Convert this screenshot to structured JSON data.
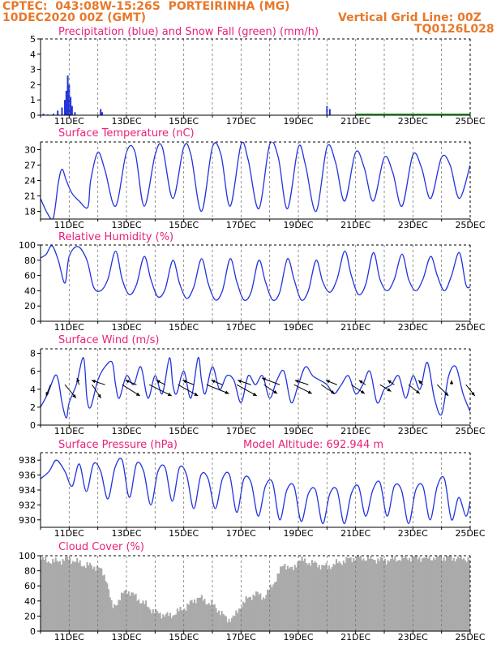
{
  "header": {
    "line1_left": "CPTEC:  043:08W-15:26S  PORTEIRINHA (MG)",
    "line2_left": "10DEC2020 00Z (GMT)",
    "line1_right": "Vertical Grid Line: 00Z",
    "line2_right": "TQ0126L028",
    "color": "#e8782a"
  },
  "colors": {
    "title": "#e8207a",
    "line": "#2233dd",
    "snow": "#22aa22",
    "cloud": "#aaaaaa",
    "arrow": "#000000"
  },
  "x_axis": {
    "ticks": [
      "11DEC",
      "13DEC",
      "15DEC",
      "17DEC",
      "19DEC",
      "21DEC",
      "23DEC",
      "25DEC"
    ],
    "tick_days": [
      1,
      3,
      5,
      7,
      9,
      11,
      13,
      15
    ],
    "range_days": [
      0,
      15
    ],
    "grid": "dashed vertical every day at 00Z"
  },
  "panels": {
    "precip": {
      "title": "Precipitation (blue) and Snow Fall (green) (mm/h)"
    },
    "temp": {
      "title": "Surface Temperature (nC)"
    },
    "rh": {
      "title": "Relative Humidity (%)"
    },
    "wind": {
      "title": "Surface Wind (m/s)"
    },
    "pres": {
      "title": "Surface Pressure (hPa)",
      "extra": "Model Altitude: 692.944 m"
    },
    "cloud": {
      "title": "Cloud Cover (%)"
    }
  },
  "chart_data": [
    {
      "type": "bar",
      "title": "Precipitation (blue) and Snow Fall (green) (mm/h)",
      "ylim": [
        0,
        5
      ],
      "yticks": [
        "0",
        "1",
        "2",
        "3",
        "4",
        "5"
      ],
      "x_unit": "days since 10DEC2020 00Z",
      "series": [
        {
          "name": "Precipitation",
          "color": "#2233dd",
          "x": [
            0.1,
            0.25,
            0.45,
            0.6,
            0.75,
            0.85,
            0.9,
            0.95,
            1.0,
            1.05,
            1.1,
            1.2,
            2.1,
            2.15,
            10.0,
            10.1,
            11.7,
            12.7,
            13.5
          ],
          "values": [
            0.1,
            0.05,
            0.1,
            0.3,
            0.5,
            1.0,
            1.6,
            2.6,
            2.0,
            1.2,
            0.6,
            0.2,
            0.4,
            0.2,
            0.6,
            0.4,
            0.05,
            0.1,
            0.05
          ]
        },
        {
          "name": "Snow Fall",
          "color": "#22aa22",
          "x": [
            11.0,
            12.0,
            13.0,
            14.0,
            15.0
          ],
          "values": [
            0.03,
            0.03,
            0.03,
            0.03,
            0.03
          ]
        }
      ]
    },
    {
      "type": "line",
      "title": "Surface Temperature (nC)",
      "ylim": [
        16.5,
        31.5
      ],
      "yticks": [
        "18",
        "21",
        "24",
        "27",
        "30"
      ],
      "x_unit": "days since 10DEC2020 00Z",
      "series": [
        {
          "name": "Temperature",
          "color": "#2233dd",
          "x": [
            0,
            0.25,
            0.45,
            0.62,
            0.75,
            0.9,
            1.1,
            1.35,
            1.65,
            1.75,
            2.0,
            2.25,
            2.62,
            3.0,
            3.3,
            3.62,
            4.0,
            4.25,
            4.62,
            5.0,
            5.25,
            5.62,
            6.0,
            6.3,
            6.62,
            7.0,
            7.25,
            7.62,
            8.0,
            8.3,
            8.62,
            9.0,
            9.25,
            9.62,
            10.0,
            10.3,
            10.62,
            11.0,
            11.3,
            11.62,
            12.0,
            12.3,
            12.62,
            13.0,
            13.3,
            13.62,
            14.0,
            14.3,
            14.62,
            15.0
          ],
          "y": [
            20.5,
            17.5,
            16.8,
            23.5,
            26.2,
            24.0,
            21.5,
            20.0,
            18.8,
            24.0,
            29.5,
            26.0,
            19.0,
            29.5,
            29.5,
            19.0,
            29.0,
            30.5,
            20.5,
            30.5,
            29.0,
            18.0,
            30.5,
            29.0,
            19.0,
            31.0,
            28.0,
            18.5,
            31.0,
            28.5,
            18.5,
            30.5,
            27.0,
            18.0,
            30.5,
            27.5,
            20.0,
            29.5,
            26.5,
            20.0,
            28.5,
            25.5,
            19.0,
            29.0,
            26.5,
            20.5,
            28.5,
            27.0,
            20.5,
            27.0
          ]
        }
      ]
    },
    {
      "type": "line",
      "title": "Relative Humidity (%)",
      "ylim": [
        0,
        100
      ],
      "yticks": [
        "0",
        "20",
        "40",
        "60",
        "80",
        "100"
      ],
      "x_unit": "days since 10DEC2020 00Z",
      "series": [
        {
          "name": "Relative Humidity",
          "color": "#2233dd",
          "x": [
            0,
            0.2,
            0.4,
            0.62,
            0.85,
            1.0,
            1.3,
            1.62,
            1.85,
            2.1,
            2.35,
            2.62,
            2.85,
            3.1,
            3.35,
            3.62,
            3.85,
            4.1,
            4.35,
            4.62,
            4.85,
            5.1,
            5.35,
            5.62,
            5.85,
            6.1,
            6.35,
            6.62,
            6.85,
            7.1,
            7.35,
            7.62,
            7.85,
            8.1,
            8.35,
            8.62,
            8.85,
            9.1,
            9.35,
            9.62,
            9.85,
            10.1,
            10.35,
            10.62,
            10.85,
            11.1,
            11.35,
            11.62,
            11.85,
            12.1,
            12.35,
            12.62,
            12.85,
            13.1,
            13.35,
            13.62,
            13.85,
            14.1,
            14.35,
            14.62,
            14.85,
            15.0
          ],
          "y": [
            83,
            88,
            99,
            80,
            50,
            85,
            98,
            80,
            45,
            40,
            55,
            92,
            55,
            35,
            48,
            85,
            55,
            32,
            42,
            80,
            50,
            30,
            45,
            82,
            50,
            28,
            40,
            82,
            52,
            28,
            38,
            80,
            52,
            28,
            38,
            82,
            55,
            28,
            40,
            80,
            52,
            38,
            55,
            92,
            60,
            35,
            48,
            90,
            55,
            40,
            55,
            88,
            55,
            40,
            55,
            85,
            60,
            40,
            60,
            90,
            48,
            45
          ]
        }
      ]
    },
    {
      "type": "line",
      "title": "Surface Wind (m/s)",
      "ylim": [
        0,
        8.5
      ],
      "yticks": [
        "0",
        "2",
        "4",
        "6",
        "8"
      ],
      "x_unit": "days since 10DEC2020 00Z",
      "series": [
        {
          "name": "Wind speed",
          "color": "#2233dd",
          "x": [
            0,
            0.25,
            0.5,
            0.62,
            0.75,
            0.9,
            1.0,
            1.25,
            1.5,
            1.62,
            1.75,
            2.0,
            2.25,
            2.5,
            2.62,
            2.75,
            3.0,
            3.25,
            3.5,
            3.75,
            4.0,
            4.25,
            4.5,
            4.62,
            4.75,
            5.0,
            5.25,
            5.5,
            5.62,
            5.75,
            6.0,
            6.25,
            6.5,
            6.75,
            7.0,
            7.25,
            7.5,
            7.75,
            8.0,
            8.25,
            8.5,
            8.75,
            9.0,
            9.25,
            9.5,
            9.75,
            10.0,
            10.25,
            10.5,
            10.75,
            11.0,
            11.25,
            11.5,
            11.75,
            12.0,
            12.25,
            12.5,
            12.75,
            13.0,
            13.25,
            13.5,
            13.75,
            14.0,
            14.25,
            14.5,
            14.75,
            15.0
          ],
          "y": [
            2.0,
            3.5,
            5.5,
            5.0,
            2.5,
            0.8,
            2.5,
            4.5,
            7.5,
            3.0,
            2.0,
            5.0,
            6.5,
            7.0,
            4.5,
            3.0,
            5.5,
            4.5,
            6.5,
            3.0,
            5.5,
            3.5,
            7.5,
            4.5,
            3.5,
            6.0,
            3.0,
            7.5,
            5.0,
            3.5,
            6.5,
            4.0,
            5.5,
            5.0,
            2.5,
            5.5,
            4.5,
            5.5,
            3.0,
            5.0,
            6.0,
            2.5,
            4.5,
            6.5,
            5.5,
            5.0,
            4.5,
            3.5,
            4.5,
            5.5,
            3.5,
            4.5,
            6.0,
            2.5,
            4.0,
            4.5,
            5.5,
            3.0,
            5.5,
            4.0,
            7.0,
            3.0,
            1.2,
            5.5,
            6.5,
            3.5,
            1.5
          ]
        }
      ],
      "arrows": {
        "x": [
          0.35,
          0.85,
          1.35,
          1.8,
          2.25,
          2.85,
          3.35,
          3.8,
          4.35,
          4.8,
          5.35,
          5.8,
          6.35,
          6.85,
          7.35,
          7.8,
          8.35,
          8.85,
          9.35,
          9.8,
          10.35,
          10.85,
          11.35,
          11.85,
          12.35,
          12.85,
          13.35,
          13.85,
          14.35,
          14.85
        ],
        "u": [
          -1.0,
          2.5,
          -0.5,
          2.0,
          -3.0,
          4.0,
          -2.5,
          5.0,
          -2.0,
          4.5,
          -2.5,
          5.0,
          -2.5,
          4.5,
          -3.0,
          3.0,
          -4.0,
          4.0,
          -3.0,
          3.0,
          -2.5,
          3.0,
          -1.5,
          2.5,
          -1.5,
          2.5,
          -1.0,
          2.5,
          0.0,
          2.0
        ],
        "v": [
          -2.5,
          -3.0,
          1.5,
          -3.0,
          1.0,
          -2.5,
          1.0,
          -2.5,
          1.0,
          -2.5,
          1.0,
          -2.0,
          1.0,
          -2.5,
          1.0,
          -2.0,
          1.5,
          -2.0,
          1.0,
          -2.0,
          1.0,
          -2.0,
          1.0,
          -1.5,
          1.0,
          -2.0,
          1.0,
          -2.5,
          1.0,
          -2.5
        ]
      }
    },
    {
      "type": "line",
      "title": "Surface Pressure (hPa)",
      "ylim": [
        929.0,
        939.0
      ],
      "yticks": [
        "930",
        "932",
        "934",
        "936",
        "938"
      ],
      "x_unit": "days since 10DEC2020 00Z",
      "series": [
        {
          "name": "Pressure",
          "color": "#2233dd",
          "x": [
            0,
            0.3,
            0.55,
            0.85,
            1.1,
            1.35,
            1.6,
            1.85,
            2.1,
            2.35,
            2.6,
            2.85,
            3.1,
            3.35,
            3.6,
            3.85,
            4.1,
            4.35,
            4.6,
            4.85,
            5.1,
            5.35,
            5.6,
            5.85,
            6.1,
            6.35,
            6.6,
            6.85,
            7.1,
            7.35,
            7.6,
            7.85,
            8.1,
            8.35,
            8.6,
            8.85,
            9.1,
            9.35,
            9.6,
            9.85,
            10.1,
            10.35,
            10.6,
            10.85,
            11.1,
            11.35,
            11.6,
            11.85,
            12.1,
            12.35,
            12.6,
            12.85,
            13.1,
            13.35,
            13.6,
            13.85,
            14.1,
            14.35,
            14.6,
            14.85,
            15.0
          ],
          "y": [
            935.5,
            936.5,
            938.0,
            936.5,
            934.5,
            937.5,
            933.8,
            937.5,
            936.5,
            932.8,
            937.0,
            938.0,
            933.0,
            937.5,
            936.5,
            932.0,
            936.5,
            937.0,
            932.5,
            937.0,
            936.0,
            931.5,
            936.0,
            935.5,
            931.5,
            935.5,
            936.0,
            931.0,
            935.5,
            935.0,
            930.5,
            934.5,
            935.0,
            930.0,
            934.0,
            934.5,
            929.8,
            933.5,
            934.0,
            929.5,
            933.5,
            934.0,
            929.5,
            933.5,
            934.5,
            930.5,
            934.0,
            935.0,
            930.5,
            934.5,
            934.0,
            929.5,
            934.0,
            934.5,
            930.0,
            934.5,
            935.5,
            930.0,
            933.0,
            930.5,
            932.5
          ]
        }
      ]
    },
    {
      "type": "bar",
      "title": "Cloud Cover (%)",
      "ylim": [
        0,
        100
      ],
      "yticks": [
        "0",
        "20",
        "40",
        "60",
        "80",
        "100"
      ],
      "x_unit": "days since 10DEC2020 00Z",
      "series": [
        {
          "name": "Cloud Cover",
          "color": "#aaaaaa",
          "x": [
            0,
            0.5,
            1.0,
            1.5,
            2.0,
            2.3,
            2.5,
            3.0,
            3.5,
            4.0,
            4.5,
            5.0,
            5.5,
            6.0,
            6.3,
            6.5,
            6.8,
            7.0,
            7.3,
            7.5,
            7.8,
            8.0,
            8.3,
            8.5,
            8.8,
            9.0,
            9.5,
            10.0,
            10.5,
            11.0,
            11.5,
            12.0,
            12.5,
            13.0,
            13.5,
            14.0,
            14.5,
            15.0
          ],
          "y": [
            95,
            92,
            96,
            88,
            85,
            70,
            30,
            55,
            40,
            25,
            20,
            30,
            45,
            35,
            25,
            15,
            20,
            35,
            45,
            50,
            45,
            55,
            75,
            90,
            80,
            95,
            90,
            85,
            92,
            98,
            96,
            94,
            96,
            98,
            97,
            98,
            97,
            96
          ]
        }
      ]
    }
  ]
}
